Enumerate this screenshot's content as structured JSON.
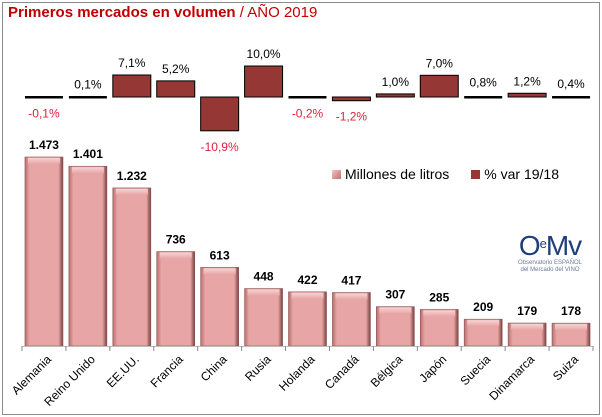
{
  "chart_data": {
    "type": "bar",
    "title": "Primeros mercados en volumen",
    "title_suffix": "/ AÑO 2019",
    "categories": [
      "Alemania",
      "Reino Unido",
      "EE.UU.",
      "Francia",
      "China",
      "Rusia",
      "Holanda",
      "Canadá",
      "Bélgica",
      "Japón",
      "Suecia",
      "Dinamarca",
      "Suiza"
    ],
    "series": [
      {
        "name": "Millones de litros",
        "values": [
          1473,
          1401,
          1232,
          736,
          613,
          448,
          422,
          417,
          307,
          285,
          209,
          179,
          178
        ],
        "labels": [
          "1.473",
          "1.401",
          "1.232",
          "736",
          "613",
          "448",
          "422",
          "417",
          "307",
          "285",
          "209",
          "179",
          "178"
        ],
        "color": "#e6a1a1"
      },
      {
        "name": "% var 19/18",
        "values": [
          -0.1,
          0.1,
          7.1,
          5.2,
          -10.9,
          10.0,
          -0.2,
          -1.2,
          1.0,
          7.0,
          0.8,
          1.2,
          0.4
        ],
        "labels": [
          "-0,1%",
          "0,1%",
          "7,1%",
          "5,2%",
          "-10,9%",
          "10,0%",
          "-0,2%",
          "-1,2%",
          "1,0%",
          "7,0%",
          "0,8%",
          "1,2%",
          "0,4%"
        ],
        "color": "#953735",
        "negative_label_color": "#e0203c"
      }
    ],
    "xlabel": "",
    "ylabel": "",
    "grid": false,
    "legend": "right-middle",
    "ylim_volume": [
      0,
      1500
    ],
    "ylim_var": [
      -11,
      11
    ]
  },
  "legend": {
    "items": [
      {
        "label": "Millones de litros"
      },
      {
        "label": "% var 19/18"
      }
    ]
  },
  "logo": {
    "mark": "OeMv",
    "line1": "Observatorio ESPAÑOL",
    "line2": "del Mercado del VINO"
  }
}
